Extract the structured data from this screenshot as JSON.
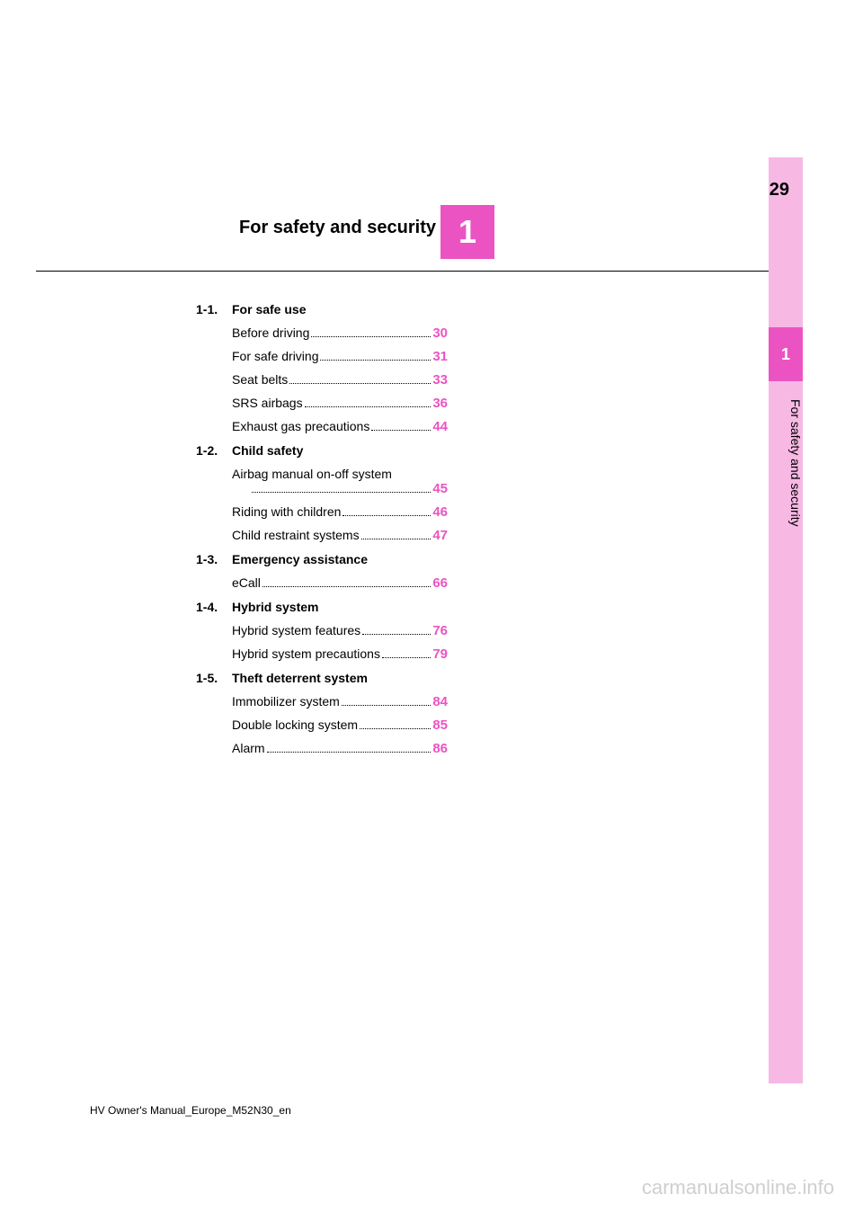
{
  "page_number": "29",
  "chapter": {
    "number": "1",
    "title": "For safety and security"
  },
  "side_tab": {
    "number": "1",
    "label": "For safety and security"
  },
  "toc": [
    {
      "sec_num": "1-1.",
      "title": "For safe use",
      "entries": [
        {
          "label": "Before driving",
          "page": "30"
        },
        {
          "label": "For safe driving",
          "page": "31"
        },
        {
          "label": "Seat belts",
          "page": "33"
        },
        {
          "label": "SRS airbags",
          "page": "36"
        },
        {
          "label": "Exhaust gas precautions",
          "page": "44"
        }
      ]
    },
    {
      "sec_num": "1-2.",
      "title": "Child safety",
      "entries": [
        {
          "label": "Airbag manual on-off system",
          "page": "45",
          "wrap": true
        },
        {
          "label": "Riding with children",
          "page": "46"
        },
        {
          "label": "Child restraint systems",
          "page": "47"
        }
      ]
    },
    {
      "sec_num": "1-3.",
      "title": "Emergency assistance",
      "entries": [
        {
          "label": "eCall",
          "page": "66"
        }
      ]
    },
    {
      "sec_num": "1-4.",
      "title": "Hybrid system",
      "entries": [
        {
          "label": "Hybrid system features",
          "page": "76"
        },
        {
          "label": "Hybrid system precautions",
          "page": "79"
        }
      ]
    },
    {
      "sec_num": "1-5.",
      "title": "Theft deterrent system",
      "entries": [
        {
          "label": "Immobilizer system",
          "page": "84"
        },
        {
          "label": "Double locking system",
          "page": "85"
        },
        {
          "label": "Alarm",
          "page": "86"
        }
      ]
    }
  ],
  "footer": "HV Owner's Manual_Europe_M52N30_en",
  "watermark": "carmanualsonline.info"
}
